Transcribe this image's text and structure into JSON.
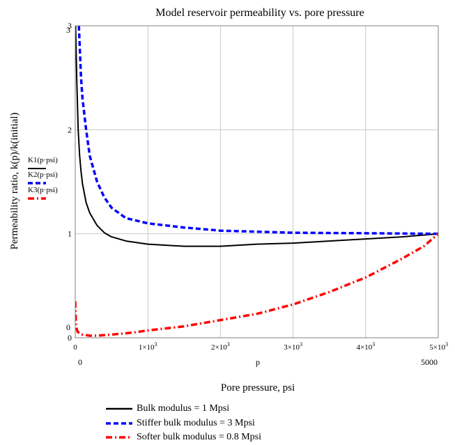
{
  "chart_data": {
    "type": "line",
    "title": "Model reservoir permeability vs. pore pressure",
    "xlabel": "Pore pressure, psi",
    "ylabel": "Permeability ratio, k(p)/k(initial)",
    "x_variable": "p",
    "xlim": [
      0,
      5000
    ],
    "ylim": [
      0,
      3
    ],
    "x_range_labels": [
      "0",
      "5000"
    ],
    "y_range_labels": [
      "3",
      "0"
    ],
    "x_ticks": [
      {
        "value": 0,
        "label": "0"
      },
      {
        "value": 1000,
        "label": "1×10",
        "exp": "3"
      },
      {
        "value": 2000,
        "label": "2×10",
        "exp": "3"
      },
      {
        "value": 3000,
        "label": "3×10",
        "exp": "3"
      },
      {
        "value": 4000,
        "label": "4×10",
        "exp": "3"
      },
      {
        "value": 5000,
        "label": "5×10",
        "exp": "3"
      }
    ],
    "y_ticks": [
      {
        "value": 0,
        "label": "0"
      },
      {
        "value": 1,
        "label": "1"
      },
      {
        "value": 2,
        "label": "2"
      },
      {
        "value": 3,
        "label": "3"
      }
    ],
    "grid": true,
    "series": [
      {
        "name": "K1(p·psi)",
        "legend": "Bulk modulus = 1 Mpsi",
        "color": "#000000",
        "dash": "solid",
        "x": [
          5,
          20,
          40,
          60,
          80,
          100,
          150,
          200,
          300,
          400,
          500,
          700,
          1000,
          1500,
          2000,
          2500,
          3000,
          3500,
          4000,
          4500,
          5000
        ],
        "y": [
          3.0,
          2.5,
          2.0,
          1.75,
          1.6,
          1.48,
          1.3,
          1.2,
          1.08,
          1.01,
          0.97,
          0.93,
          0.9,
          0.88,
          0.88,
          0.9,
          0.91,
          0.93,
          0.95,
          0.97,
          1.0
        ]
      },
      {
        "name": "K2(p·psi)",
        "legend": "Stiffer bulk modulus = 3 Mpsi",
        "color": "#0000ff",
        "dash": "dashed",
        "x": [
          50,
          80,
          100,
          150,
          200,
          300,
          400,
          500,
          700,
          1000,
          1500,
          2000,
          2500,
          3000,
          4000,
          5000
        ],
        "y": [
          3.0,
          2.5,
          2.3,
          2.0,
          1.75,
          1.5,
          1.35,
          1.25,
          1.15,
          1.1,
          1.06,
          1.03,
          1.02,
          1.01,
          1.005,
          1.0
        ]
      },
      {
        "name": "K3(p·psi)",
        "legend": "Softer bulk modulus = 0.8 Mpsi",
        "color": "#ff0000",
        "dash": "dashdot",
        "x": [
          0,
          10,
          30,
          60,
          100,
          200,
          300,
          500,
          800,
          1000,
          1500,
          2000,
          2500,
          3000,
          3500,
          4000,
          4500,
          4800,
          5000
        ],
        "y": [
          0.35,
          0.12,
          0.06,
          0.04,
          0.03,
          0.02,
          0.02,
          0.03,
          0.05,
          0.07,
          0.11,
          0.17,
          0.23,
          0.32,
          0.44,
          0.58,
          0.76,
          0.88,
          1.0
        ]
      }
    ]
  }
}
